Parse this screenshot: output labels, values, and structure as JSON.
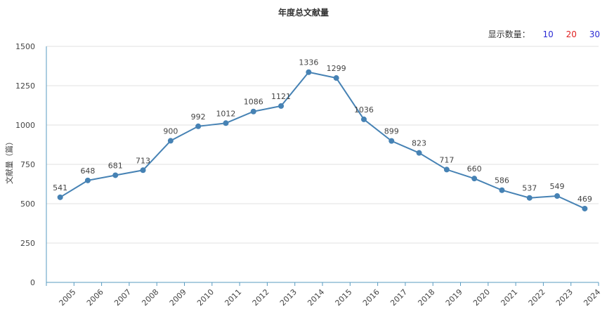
{
  "chart_title": "年度总文献量",
  "count_selector": {
    "label": "显示数量：",
    "options": [
      {
        "label": "10",
        "color": "#2b2bd4"
      },
      {
        "label": "20",
        "color": "#e02020"
      },
      {
        "label": "30",
        "color": "#2b2bd4"
      }
    ]
  },
  "chart_data": {
    "type": "line",
    "title": "年度总文献量",
    "xlabel": "",
    "ylabel": "文献量（篇）",
    "ylim": [
      0,
      1500
    ],
    "yticks": [
      0,
      250,
      500,
      750,
      1000,
      1250,
      1500
    ],
    "grid": true,
    "line_color": "#4682b4",
    "categories": [
      "2005",
      "2006",
      "2007",
      "2008",
      "2009",
      "2010",
      "2011",
      "2012",
      "2013",
      "2014",
      "2015",
      "2016",
      "2017",
      "2018",
      "2019",
      "2020",
      "2021",
      "2022",
      "2023",
      "2024"
    ],
    "values": [
      541,
      648,
      681,
      713,
      900,
      992,
      1012,
      1086,
      1121,
      1336,
      1299,
      1036,
      899,
      823,
      717,
      660,
      586,
      537,
      549,
      469
    ]
  }
}
